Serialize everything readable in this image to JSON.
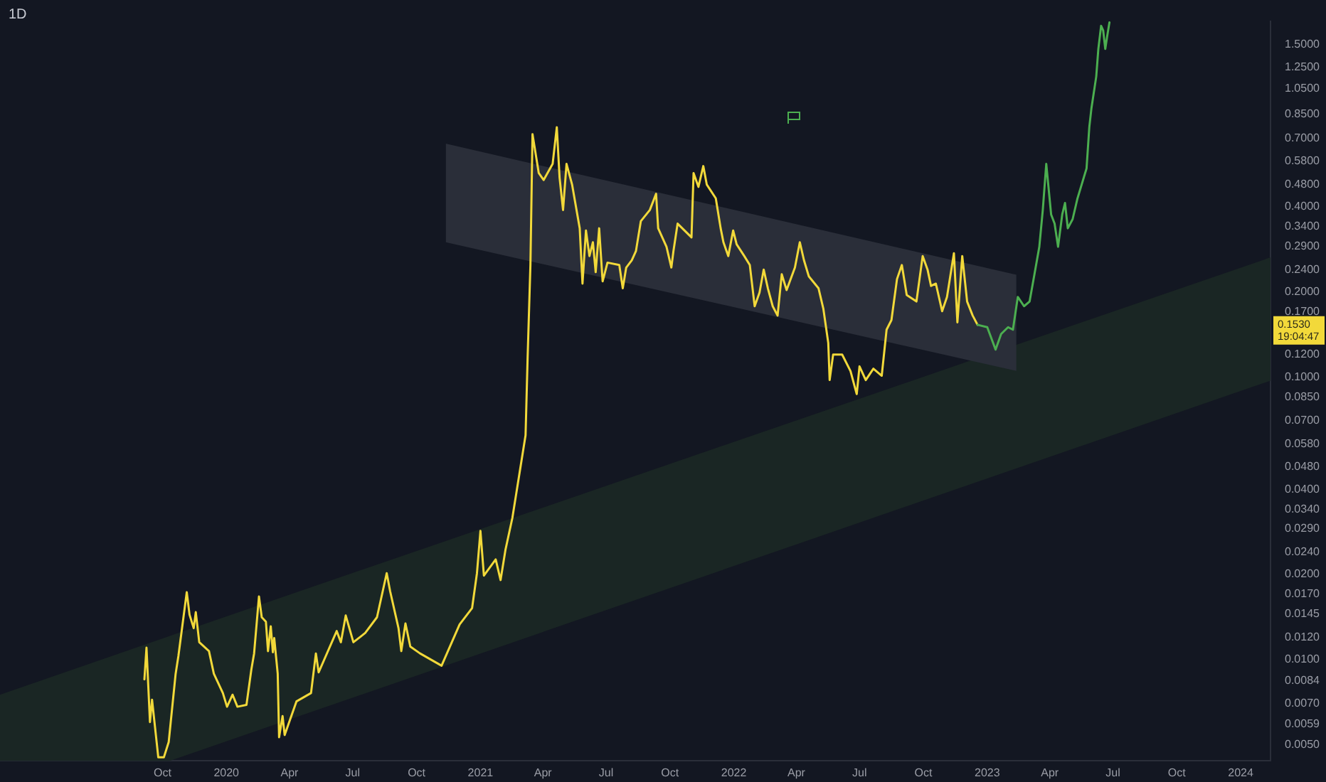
{
  "chart_data": {
    "type": "line",
    "title": "1D",
    "log": true,
    "xlim": [
      "2019-02-09",
      "2024-02-13"
    ],
    "ylim": [
      0.00437,
      1.82
    ],
    "xticks": [
      {
        "value": "2019-10-01",
        "label": "Oct"
      },
      {
        "value": "2020-01-01",
        "label": "2020"
      },
      {
        "value": "2020-04-01",
        "label": "Apr"
      },
      {
        "value": "2020-07-01",
        "label": "Jul"
      },
      {
        "value": "2020-10-01",
        "label": "Oct"
      },
      {
        "value": "2021-01-01",
        "label": "2021"
      },
      {
        "value": "2021-04-01",
        "label": "Apr"
      },
      {
        "value": "2021-07-01",
        "label": "Jul"
      },
      {
        "value": "2021-10-01",
        "label": "Oct"
      },
      {
        "value": "2022-01-01",
        "label": "2022"
      },
      {
        "value": "2022-04-01",
        "label": "Apr"
      },
      {
        "value": "2022-07-01",
        "label": "Jul"
      },
      {
        "value": "2022-10-01",
        "label": "Oct"
      },
      {
        "value": "2023-01-01",
        "label": "2023"
      },
      {
        "value": "2023-04-01",
        "label": "Apr"
      },
      {
        "value": "2023-07-01",
        "label": "Jul"
      },
      {
        "value": "2023-10-01",
        "label": "Oct"
      },
      {
        "value": "2024-01-01",
        "label": "2024"
      }
    ],
    "yticks": [
      {
        "value": 1.5,
        "label": "1.5000"
      },
      {
        "value": 1.25,
        "label": "1.2500"
      },
      {
        "value": 1.05,
        "label": "1.0500"
      },
      {
        "value": 0.85,
        "label": "0.8500"
      },
      {
        "value": 0.7,
        "label": "0.7000"
      },
      {
        "value": 0.58,
        "label": "0.5800"
      },
      {
        "value": 0.48,
        "label": "0.4800"
      },
      {
        "value": 0.4,
        "label": "0.4000"
      },
      {
        "value": 0.34,
        "label": "0.3400"
      },
      {
        "value": 0.29,
        "label": "0.2900"
      },
      {
        "value": 0.24,
        "label": "0.2400"
      },
      {
        "value": 0.2,
        "label": "0.2000"
      },
      {
        "value": 0.17,
        "label": "0.1700"
      },
      {
        "value": 0.12,
        "label": "0.1200"
      },
      {
        "value": 0.1,
        "label": "0.1000"
      },
      {
        "value": 0.085,
        "label": "0.0850"
      },
      {
        "value": 0.07,
        "label": "0.0700"
      },
      {
        "value": 0.058,
        "label": "0.0580"
      },
      {
        "value": 0.048,
        "label": "0.0480"
      },
      {
        "value": 0.04,
        "label": "0.0400"
      },
      {
        "value": 0.034,
        "label": "0.0340"
      },
      {
        "value": 0.029,
        "label": "0.0290"
      },
      {
        "value": 0.024,
        "label": "0.0240"
      },
      {
        "value": 0.02,
        "label": "0.0200"
      },
      {
        "value": 0.017,
        "label": "0.0170"
      },
      {
        "value": 0.0145,
        "label": "0.0145"
      },
      {
        "value": 0.012,
        "label": "0.0120"
      },
      {
        "value": 0.01,
        "label": "0.0100"
      },
      {
        "value": 0.0084,
        "label": "0.0084"
      },
      {
        "value": 0.007,
        "label": "0.0070"
      },
      {
        "value": 0.0059,
        "label": "0.0059"
      },
      {
        "value": 0.005,
        "label": "0.0050"
      }
    ],
    "series": [
      {
        "type": "area",
        "color": "#1a2624",
        "x": [
          "2019-02-09",
          "2019-10-11",
          "2024-02-13"
        ],
        "values": [
          null,
          null,
          null
        ],
        "lower": [
          0.00437,
          0.00437,
          0.097
        ],
        "upper": [
          0.0075,
          0.0121,
          0.265
        ]
      },
      {
        "type": "area",
        "color": "#2a2e39",
        "x": [
          "2020-11-12",
          "2023-02-12"
        ],
        "values": [
          null,
          null
        ],
        "lower": [
          0.3,
          0.105
        ],
        "upper": [
          0.67,
          0.23
        ]
      },
      {
        "color": "#f2d93a",
        "x": [
          "2019-09-05",
          "2019-09-08",
          "2019-09-13",
          "2019-09-16",
          "2019-09-25",
          "2019-10-03",
          "2019-10-10",
          "2019-10-20",
          "2019-10-24",
          "2019-11-05",
          "2019-11-09",
          "2019-11-15",
          "2019-11-18",
          "2019-11-23",
          "2019-12-07",
          "2019-12-14",
          "2019-12-27",
          "2020-01-02",
          "2020-01-10",
          "2020-01-17",
          "2020-01-30",
          "2020-02-06",
          "2020-02-10",
          "2020-02-17",
          "2020-02-21",
          "2020-02-27",
          "2020-03-01",
          "2020-03-05",
          "2020-03-08",
          "2020-03-10",
          "2020-03-15",
          "2020-03-17",
          "2020-03-22",
          "2020-03-25",
          "2020-04-11",
          "2020-05-02",
          "2020-05-09",
          "2020-05-13",
          "2020-06-08",
          "2020-06-14",
          "2020-06-21",
          "2020-07-02",
          "2020-07-19",
          "2020-08-05",
          "2020-08-19",
          "2020-08-24",
          "2020-09-05",
          "2020-09-09",
          "2020-09-15",
          "2020-09-22",
          "2020-10-06",
          "2020-11-06",
          "2020-12-02",
          "2020-12-20",
          "2020-12-27",
          "2021-01-01",
          "2021-01-06",
          "2021-01-23",
          "2021-01-30",
          "2021-02-06",
          "2021-02-16",
          "2021-03-07",
          "2021-03-10",
          "2021-03-14",
          "2021-03-17",
          "2021-03-26",
          "2021-04-02",
          "2021-04-15",
          "2021-04-21",
          "2021-04-25",
          "2021-04-30",
          "2021-05-05",
          "2021-05-13",
          "2021-05-24",
          "2021-05-28",
          "2021-06-02",
          "2021-06-07",
          "2021-06-12",
          "2021-06-16",
          "2021-06-21",
          "2021-06-26",
          "2021-07-03",
          "2021-07-20",
          "2021-07-25",
          "2021-07-30",
          "2021-08-07",
          "2021-08-13",
          "2021-08-20",
          "2021-09-02",
          "2021-09-11",
          "2021-09-14",
          "2021-09-26",
          "2021-10-03",
          "2021-10-06",
          "2021-10-12",
          "2021-11-01",
          "2021-11-04",
          "2021-11-11",
          "2021-11-18",
          "2021-11-23",
          "2021-12-06",
          "2021-12-13",
          "2021-12-17",
          "2021-12-24",
          "2021-12-31",
          "2022-01-05",
          "2022-01-16",
          "2022-01-24",
          "2022-01-31",
          "2022-02-07",
          "2022-02-13",
          "2022-02-19",
          "2022-02-26",
          "2022-03-05",
          "2022-03-11",
          "2022-03-18",
          "2022-03-30",
          "2022-04-06",
          "2022-04-12",
          "2022-04-19",
          "2022-05-03",
          "2022-05-10",
          "2022-05-17",
          "2022-05-19",
          "2022-05-24",
          "2022-06-06",
          "2022-06-18",
          "2022-06-27",
          "2022-07-01",
          "2022-07-10",
          "2022-07-21",
          "2022-08-02",
          "2022-08-09",
          "2022-08-16",
          "2022-08-24",
          "2022-08-31",
          "2022-09-07",
          "2022-09-21",
          "2022-09-30",
          "2022-10-07",
          "2022-10-12",
          "2022-10-19",
          "2022-10-28",
          "2022-11-04",
          "2022-11-14",
          "2022-11-19",
          "2022-11-26",
          "2022-12-03",
          "2022-12-11",
          "2022-12-18"
        ],
        "values": [
          0.0085,
          0.011,
          0.006,
          0.0072,
          0.0045,
          0.0045,
          0.0051,
          0.0089,
          0.0103,
          0.0173,
          0.0144,
          0.0129,
          0.0147,
          0.0115,
          0.0107,
          0.0089,
          0.0076,
          0.0068,
          0.0075,
          0.0068,
          0.0069,
          0.0092,
          0.0105,
          0.0167,
          0.0141,
          0.0136,
          0.0107,
          0.0131,
          0.0106,
          0.0119,
          0.0089,
          0.0053,
          0.0063,
          0.0054,
          0.0071,
          0.0076,
          0.0105,
          0.009,
          0.0126,
          0.0115,
          0.0143,
          0.0115,
          0.0124,
          0.0141,
          0.0202,
          0.0174,
          0.0129,
          0.0107,
          0.0134,
          0.0111,
          0.0105,
          0.0095,
          0.0133,
          0.0152,
          0.0202,
          0.0285,
          0.0198,
          0.0226,
          0.0191,
          0.0244,
          0.0317,
          0.0622,
          0.118,
          0.249,
          0.724,
          0.527,
          0.498,
          0.568,
          0.766,
          0.508,
          0.39,
          0.568,
          0.48,
          0.336,
          0.214,
          0.33,
          0.268,
          0.3,
          0.235,
          0.336,
          0.218,
          0.254,
          0.249,
          0.206,
          0.244,
          0.259,
          0.279,
          0.356,
          0.39,
          0.445,
          0.336,
          0.289,
          0.244,
          0.279,
          0.349,
          0.312,
          0.527,
          0.471,
          0.558,
          0.48,
          0.429,
          0.336,
          0.3,
          0.268,
          0.33,
          0.295,
          0.268,
          0.249,
          0.178,
          0.199,
          0.24,
          0.206,
          0.178,
          0.165,
          0.231,
          0.203,
          0.244,
          0.3,
          0.259,
          0.227,
          0.206,
          0.174,
          0.132,
          0.0975,
          0.12,
          0.12,
          0.105,
          0.087,
          0.109,
          0.0975,
          0.107,
          0.101,
          0.147,
          0.159,
          0.222,
          0.249,
          0.195,
          0.185,
          0.268,
          0.24,
          0.21,
          0.214,
          0.171,
          0.192,
          0.274,
          0.156,
          0.268,
          0.185,
          0.165,
          0.153
        ]
      },
      {
        "color": "#4caf50",
        "x": [
          "2022-12-18",
          "2023-01-01",
          "2023-01-13",
          "2023-01-21",
          "2023-01-31",
          "2023-02-07",
          "2023-02-14",
          "2023-02-23",
          "2023-03-03",
          "2023-03-10",
          "2023-03-17",
          "2023-03-22",
          "2023-03-27",
          "2023-04-03",
          "2023-04-08",
          "2023-04-13",
          "2023-04-19",
          "2023-04-23",
          "2023-04-27",
          "2023-05-04",
          "2023-05-11",
          "2023-05-17",
          "2023-05-24",
          "2023-05-28",
          "2023-05-31",
          "2023-06-07",
          "2023-06-10",
          "2023-06-14",
          "2023-06-17",
          "2023-06-20",
          "2023-06-23",
          "2023-06-26"
        ],
        "values": [
          0.153,
          0.15,
          0.125,
          0.142,
          0.15,
          0.147,
          0.192,
          0.178,
          0.185,
          0.231,
          0.289,
          0.39,
          0.568,
          0.376,
          0.349,
          0.289,
          0.376,
          0.413,
          0.336,
          0.362,
          0.429,
          0.48,
          0.547,
          0.766,
          0.891,
          1.158,
          1.45,
          1.75,
          1.685,
          1.45,
          1.623,
          1.8
        ]
      }
    ],
    "annotations": [
      "0.1530",
      "19:04:47"
    ]
  }
}
